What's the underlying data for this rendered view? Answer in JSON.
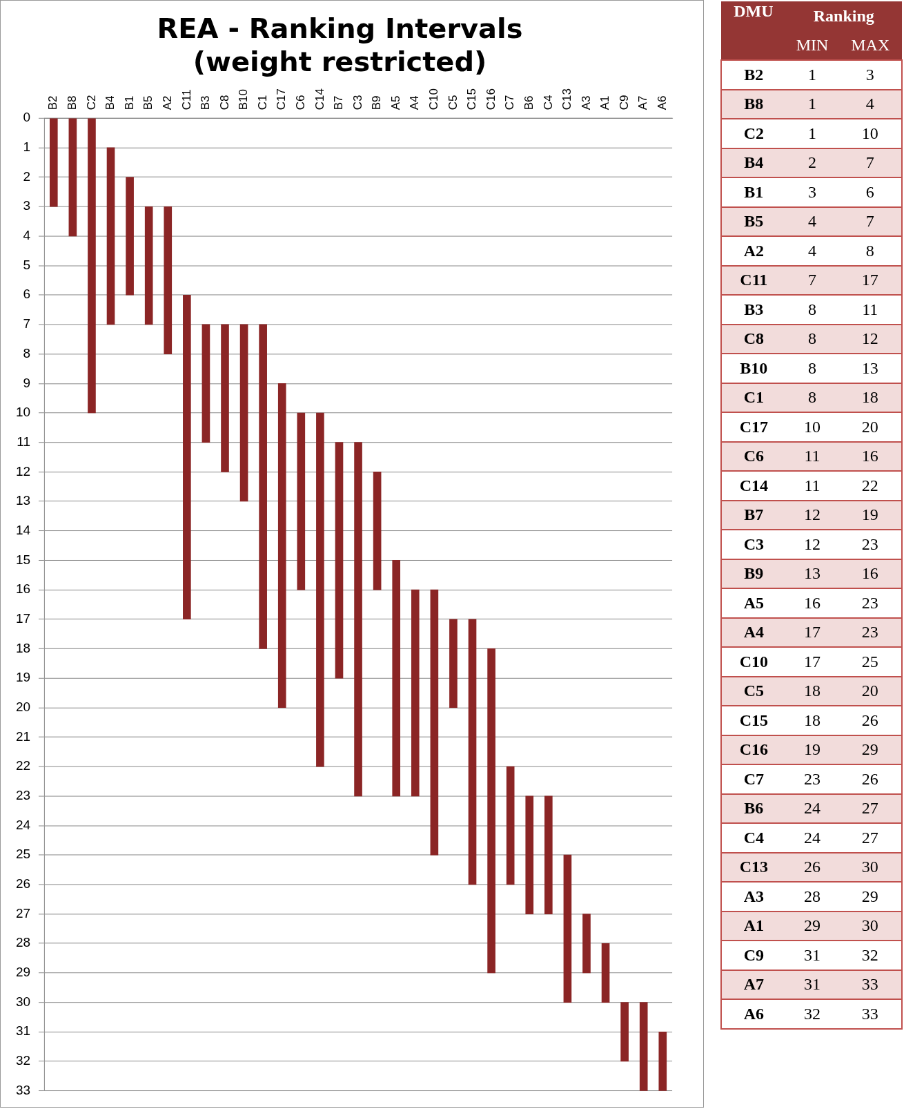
{
  "chart_data": [
    {
      "type": "bar",
      "title": "REA - Ranking Intervals (weight restricted)",
      "categories": [
        "B2",
        "B8",
        "C2",
        "B4",
        "B1",
        "B5",
        "A2",
        "C11",
        "B3",
        "C8",
        "B10",
        "C1",
        "C17",
        "C6",
        "C14",
        "B7",
        "C3",
        "B9",
        "A5",
        "A4",
        "C10",
        "C5",
        "C15",
        "C16",
        "C7",
        "B6",
        "C4",
        "C13",
        "A3",
        "A1",
        "C9",
        "A7",
        "A6"
      ],
      "base": [
        0,
        0,
        0,
        1,
        2,
        3,
        3,
        6,
        7,
        7,
        7,
        7,
        9,
        10,
        10,
        11,
        11,
        12,
        15,
        16,
        16,
        17,
        17,
        18,
        22,
        23,
        23,
        25,
        27,
        28,
        30,
        30,
        31
      ],
      "values": [
        3,
        4,
        10,
        6,
        4,
        4,
        5,
        11,
        4,
        5,
        6,
        11,
        11,
        6,
        12,
        8,
        12,
        4,
        8,
        7,
        9,
        3,
        9,
        11,
        4,
        4,
        4,
        5,
        2,
        2,
        2,
        3,
        2
      ],
      "color": "#8b2525",
      "ylim": [
        33,
        0
      ],
      "yticks": [
        0,
        1,
        2,
        3,
        4,
        5,
        6,
        7,
        8,
        9,
        10,
        11,
        12,
        13,
        14,
        15,
        16,
        17,
        18,
        19,
        20,
        21,
        22,
        23,
        24,
        25,
        26,
        27,
        28,
        29,
        30,
        31,
        32,
        33
      ],
      "grid": "y",
      "legend": false
    },
    {
      "type": "other",
      "title": "Ranking",
      "legend_title": "DMU",
      "categories": [
        "B2",
        "B8",
        "C2",
        "B4",
        "B1",
        "B5",
        "A2",
        "C11",
        "B3",
        "C8",
        "B10",
        "C1",
        "C17",
        "C6",
        "C14",
        "B7",
        "C3",
        "B9",
        "A5",
        "A4",
        "C10",
        "C5",
        "C15",
        "C16",
        "C7",
        "B6",
        "C4",
        "C13",
        "A3",
        "A1",
        "C9",
        "A7",
        "A6"
      ],
      "series": [
        {
          "name": "MIN",
          "values": [
            1,
            1,
            1,
            2,
            3,
            4,
            4,
            7,
            8,
            8,
            8,
            8,
            10,
            11,
            11,
            12,
            12,
            13,
            16,
            17,
            17,
            18,
            18,
            19,
            23,
            24,
            24,
            26,
            28,
            29,
            31,
            31,
            32
          ]
        },
        {
          "name": "MAX",
          "values": [
            3,
            4,
            10,
            7,
            6,
            7,
            8,
            17,
            11,
            12,
            13,
            18,
            20,
            16,
            22,
            19,
            23,
            16,
            23,
            23,
            25,
            20,
            26,
            29,
            26,
            27,
            27,
            30,
            29,
            30,
            32,
            33,
            33
          ]
        }
      ],
      "data_labels": true
    }
  ]
}
